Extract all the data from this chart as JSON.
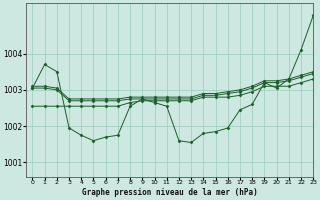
{
  "title": "Graphe pression niveau de la mer (hPa)",
  "bg_color": "#cce8e0",
  "grid_color": "#99ccbb",
  "line_color": "#1a5c2a",
  "xlim": [
    -0.5,
    23
  ],
  "ylim": [
    1000.6,
    1005.4
  ],
  "yticks": [
    1001,
    1002,
    1003,
    1004
  ],
  "xticks": [
    0,
    1,
    2,
    3,
    4,
    5,
    6,
    7,
    8,
    9,
    10,
    11,
    12,
    13,
    14,
    15,
    16,
    17,
    18,
    19,
    20,
    21,
    22,
    23
  ],
  "series": [
    [
      1003.05,
      1003.7,
      1003.5,
      1001.95,
      1001.75,
      1001.6,
      1001.7,
      1001.75,
      1002.55,
      1002.75,
      1002.65,
      1002.55,
      1001.6,
      1001.55,
      1001.8,
      1001.85,
      1001.95,
      1002.45,
      1002.6,
      1003.2,
      1003.05,
      1003.3,
      1004.1,
      1005.05
    ],
    [
      1002.55,
      1002.55,
      1002.55,
      1002.55,
      1002.55,
      1002.55,
      1002.55,
      1002.55,
      1002.65,
      1002.7,
      1002.7,
      1002.7,
      1002.7,
      1002.7,
      1002.8,
      1002.8,
      1002.8,
      1002.85,
      1002.95,
      1003.1,
      1003.1,
      1003.1,
      1003.2,
      1003.3
    ],
    [
      1003.05,
      1003.05,
      1003.0,
      1002.7,
      1002.7,
      1002.7,
      1002.7,
      1002.7,
      1002.75,
      1002.75,
      1002.75,
      1002.75,
      1002.75,
      1002.75,
      1002.85,
      1002.85,
      1002.9,
      1002.95,
      1003.05,
      1003.2,
      1003.2,
      1003.25,
      1003.35,
      1003.45
    ],
    [
      1003.1,
      1003.1,
      1003.05,
      1002.75,
      1002.75,
      1002.75,
      1002.75,
      1002.75,
      1002.8,
      1002.8,
      1002.8,
      1002.8,
      1002.8,
      1002.8,
      1002.9,
      1002.9,
      1002.95,
      1003.0,
      1003.1,
      1003.25,
      1003.25,
      1003.3,
      1003.4,
      1003.5
    ]
  ]
}
